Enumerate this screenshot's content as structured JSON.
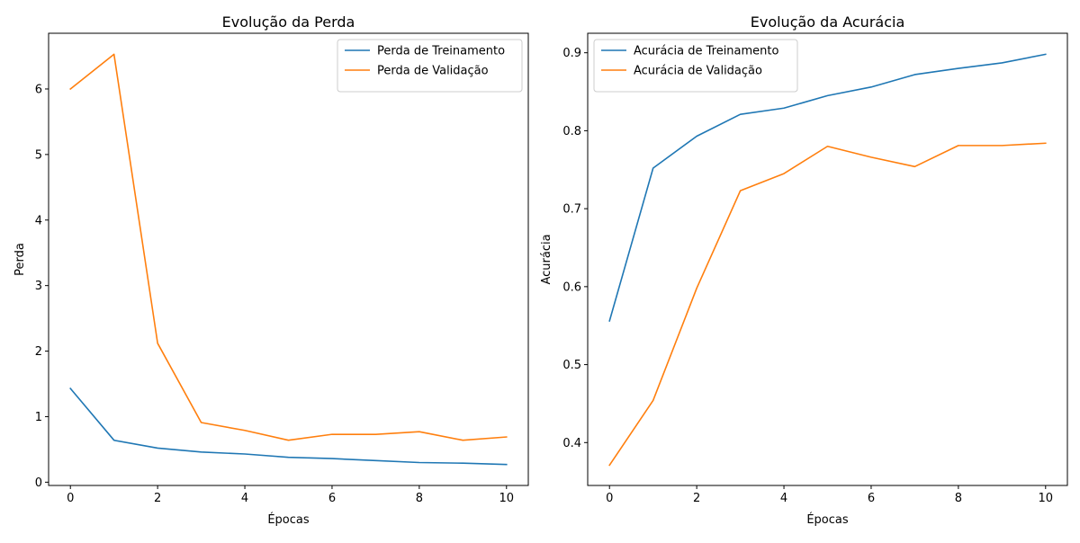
{
  "chart_data": [
    {
      "type": "line",
      "title": "Evolução da Perda",
      "xlabel": "Épocas",
      "ylabel": "Perda",
      "xlim": [
        -0.5,
        10.5
      ],
      "ylim": [
        -0.05,
        6.85
      ],
      "xticks": [
        0,
        2,
        4,
        6,
        8,
        10
      ],
      "xtick_labels": [
        "0",
        "2",
        "4",
        "6",
        "8",
        "10"
      ],
      "yticks": [
        0,
        1,
        2,
        3,
        4,
        5,
        6
      ],
      "ytick_labels": [
        "0",
        "1",
        "2",
        "3",
        "4",
        "5",
        "6"
      ],
      "grid": false,
      "legend_position": "top-right",
      "x": [
        0,
        1,
        2,
        3,
        4,
        5,
        6,
        7,
        8,
        9,
        10
      ],
      "series": [
        {
          "name": "Perda de Treinamento",
          "color": "#1f77b4",
          "values": [
            1.43,
            0.64,
            0.52,
            0.46,
            0.43,
            0.38,
            0.36,
            0.33,
            0.3,
            0.29,
            0.27
          ]
        },
        {
          "name": "Perda de Validação",
          "color": "#ff7f0e",
          "values": [
            6.0,
            6.53,
            2.12,
            0.91,
            0.79,
            0.64,
            0.73,
            0.73,
            0.77,
            0.64,
            0.69
          ]
        }
      ]
    },
    {
      "type": "line",
      "title": "Evolução da Acurácia",
      "xlabel": "Épocas",
      "ylabel": "Acurácia",
      "xlim": [
        -0.5,
        10.5
      ],
      "ylim": [
        0.345,
        0.925
      ],
      "xticks": [
        0,
        2,
        4,
        6,
        8,
        10
      ],
      "xtick_labels": [
        "0",
        "2",
        "4",
        "6",
        "8",
        "10"
      ],
      "yticks": [
        0.4,
        0.5,
        0.6,
        0.7,
        0.8,
        0.9
      ],
      "ytick_labels": [
        "0.4",
        "0.5",
        "0.6",
        "0.7",
        "0.8",
        "0.9"
      ],
      "grid": false,
      "legend_position": "top-left",
      "x": [
        0,
        1,
        2,
        3,
        4,
        5,
        6,
        7,
        8,
        9,
        10
      ],
      "series": [
        {
          "name": "Acurácia de Treinamento",
          "color": "#1f77b4",
          "values": [
            0.556,
            0.752,
            0.793,
            0.821,
            0.829,
            0.845,
            0.856,
            0.872,
            0.88,
            0.887,
            0.898
          ]
        },
        {
          "name": "Acurácia de Validação",
          "color": "#ff7f0e",
          "values": [
            0.371,
            0.454,
            0.598,
            0.723,
            0.745,
            0.78,
            0.766,
            0.754,
            0.781,
            0.781,
            0.784
          ]
        }
      ]
    }
  ]
}
